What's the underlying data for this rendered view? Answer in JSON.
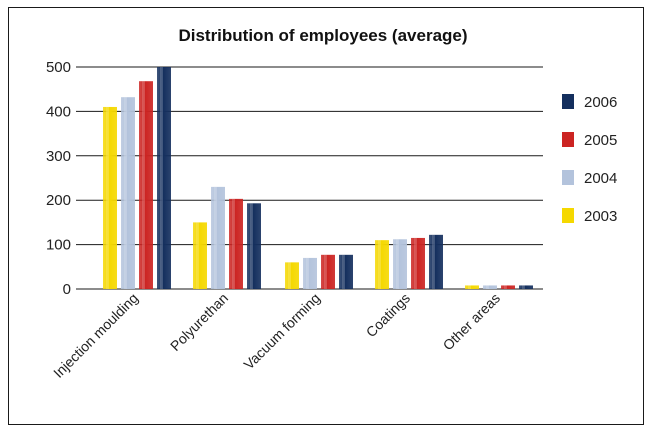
{
  "chart_data": {
    "type": "bar",
    "title": "Distribution of employees (average)",
    "xlabel": "",
    "ylabel": "",
    "ylim": [
      0,
      500
    ],
    "yticks": [
      0,
      100,
      200,
      300,
      400,
      500
    ],
    "grid": true,
    "legend_position": "right",
    "categories": [
      "Injection moulding",
      "Polyurethan",
      "Vacuum forming",
      "Coatings",
      "Other areas"
    ],
    "series": [
      {
        "name": "2003",
        "color": "#f5d800",
        "values": [
          410,
          150,
          60,
          110,
          8
        ]
      },
      {
        "name": "2004",
        "color": "#b3c3dc",
        "values": [
          432,
          230,
          70,
          112,
          8
        ]
      },
      {
        "name": "2005",
        "color": "#cc2422",
        "values": [
          468,
          203,
          77,
          115,
          8
        ]
      },
      {
        "name": "2006",
        "color": "#142f5e",
        "values": [
          500,
          193,
          77,
          122,
          8
        ]
      }
    ],
    "legend_order": [
      "2006",
      "2005",
      "2004",
      "2003"
    ]
  }
}
